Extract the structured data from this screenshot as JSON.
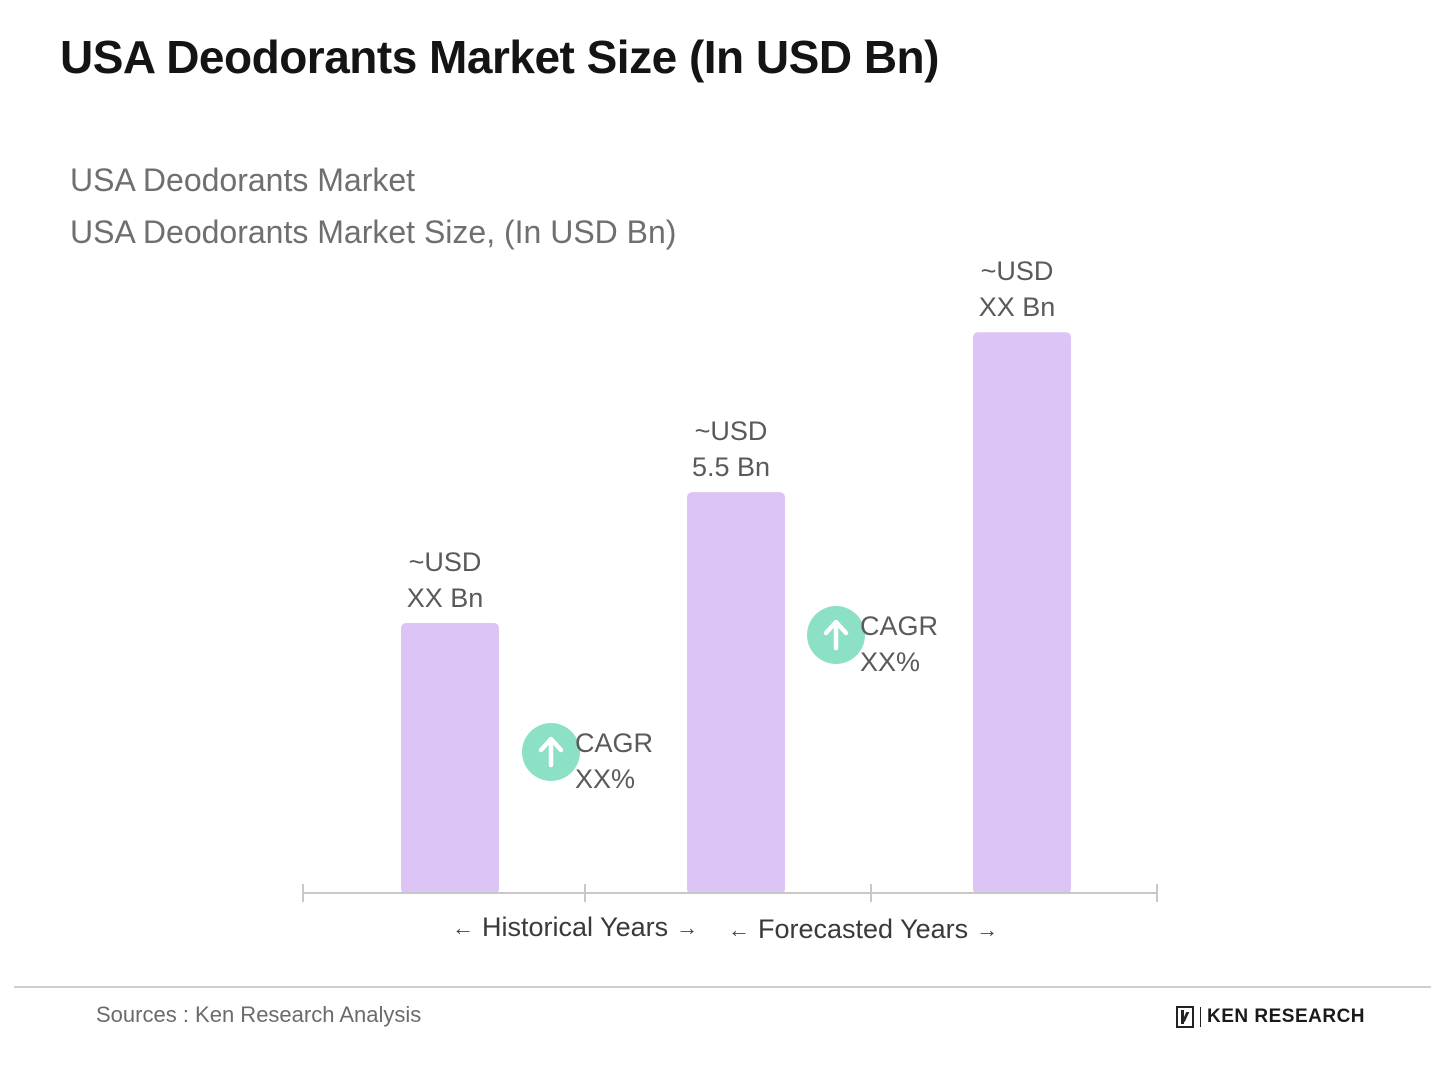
{
  "title": "USA Deodorants Market Size (In USD Bn)",
  "subtitle_1": "USA Deodorants Market",
  "subtitle_2": "USA Deodorants Market Size, (In USD Bn)",
  "source": "Sources : Ken Research Analysis",
  "brand": "KEN RESEARCH",
  "colors": {
    "bar": "#dcc4f5",
    "cagr_circle": "#8ce0c5",
    "axis": "#c8c8c8",
    "label_text": "#5a5a5a"
  },
  "chart_data": {
    "type": "bar",
    "title": "USA Deodorants Market Size, (In USD Bn)",
    "xlabel": "",
    "ylabel": "",
    "categories": [
      "",
      "",
      ""
    ],
    "values": [
      3.7,
      5.5,
      7.7
    ],
    "value_labels": [
      [
        "~USD",
        "XX Bn"
      ],
      [
        "~USD",
        "5.5 Bn"
      ],
      [
        "~USD",
        "XX Bn"
      ]
    ],
    "annotations": [
      {
        "type": "cagr",
        "icon": "arrow-up-icon",
        "lines": [
          "CAGR",
          "XX%"
        ],
        "between": [
          0,
          1
        ]
      },
      {
        "type": "cagr",
        "icon": "arrow-up-icon",
        "lines": [
          "CAGR",
          "XX%"
        ],
        "between": [
          1,
          2
        ]
      }
    ],
    "periods": [
      {
        "label": "Historical Years",
        "left_arrow": "←",
        "right_arrow": "→"
      },
      {
        "label": "Forecasted Years",
        "left_arrow": "←",
        "right_arrow": "→"
      }
    ],
    "grid": false,
    "legend": "none"
  }
}
